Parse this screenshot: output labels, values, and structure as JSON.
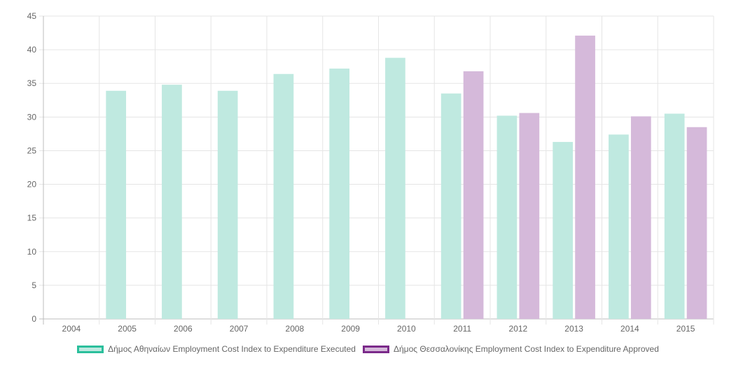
{
  "chart_data": {
    "type": "bar",
    "categories": [
      "2004",
      "2005",
      "2006",
      "2007",
      "2008",
      "2009",
      "2010",
      "2011",
      "2012",
      "2013",
      "2014",
      "2015"
    ],
    "series": [
      {
        "name": "Δήμος Αθηναίων Employment Cost Index to Expenditure Executed",
        "values": [
          null,
          33.9,
          34.8,
          33.9,
          36.4,
          37.2,
          38.8,
          33.5,
          30.2,
          26.3,
          27.4,
          30.5
        ],
        "fill": "#bfe9e0",
        "border": "#2bbf9c"
      },
      {
        "name": "Δήμος Θεσσαλονίκης Employment Cost Index to Expenditure Approved",
        "values": [
          null,
          null,
          null,
          null,
          null,
          null,
          null,
          36.8,
          30.6,
          42.1,
          30.1,
          28.5
        ],
        "fill": "#d5b9da",
        "border": "#7b2a8a"
      }
    ],
    "ylim": [
      0,
      45
    ],
    "yticks": [
      0,
      5,
      10,
      15,
      20,
      25,
      30,
      35,
      40,
      45
    ],
    "grid": true,
    "legend": "bottom",
    "title": "",
    "xlabel": "",
    "ylabel": ""
  }
}
